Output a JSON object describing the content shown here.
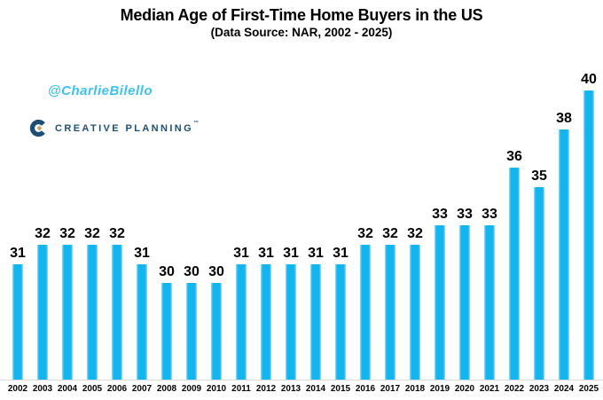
{
  "title": "Median Age of First-Time Home Buyers in the US",
  "subtitle": "(Data Source: NAR, 2002 - 2025)",
  "watermark": "@CharlieBilello",
  "logo": {
    "brand": "CREATIVE PLANNING",
    "trademark": "™"
  },
  "colors": {
    "bar": "#12b5ee",
    "bar_edge": "#a5e1f7",
    "watermark": "#3fc1f0",
    "logo_navy": "#1d4e74",
    "logo_gold": "#c3a568",
    "axis_line": "#d9d9d9",
    "text": "#000000"
  },
  "chart_data": {
    "type": "bar",
    "title": "Median Age of First-Time Home Buyers in the US",
    "subtitle": "(Data Source: NAR, 2002 - 2025)",
    "categories": [
      "2002",
      "2003",
      "2004",
      "2005",
      "2006",
      "2007",
      "2008",
      "2009",
      "2010",
      "2011",
      "2012",
      "2013",
      "2014",
      "2015",
      "2016",
      "2017",
      "2018",
      "2019",
      "2020",
      "2021",
      "2022",
      "2023",
      "2024",
      "2025"
    ],
    "values": [
      31,
      32,
      32,
      32,
      32,
      31,
      30,
      30,
      30,
      31,
      31,
      31,
      31,
      31,
      32,
      32,
      32,
      33,
      33,
      33,
      36,
      35,
      38,
      40
    ],
    "xlabel": "",
    "ylabel": "",
    "ylim": [
      25,
      41
    ],
    "grid": false,
    "legend": "none",
    "data_labels": true,
    "y_axis_hidden": true
  }
}
